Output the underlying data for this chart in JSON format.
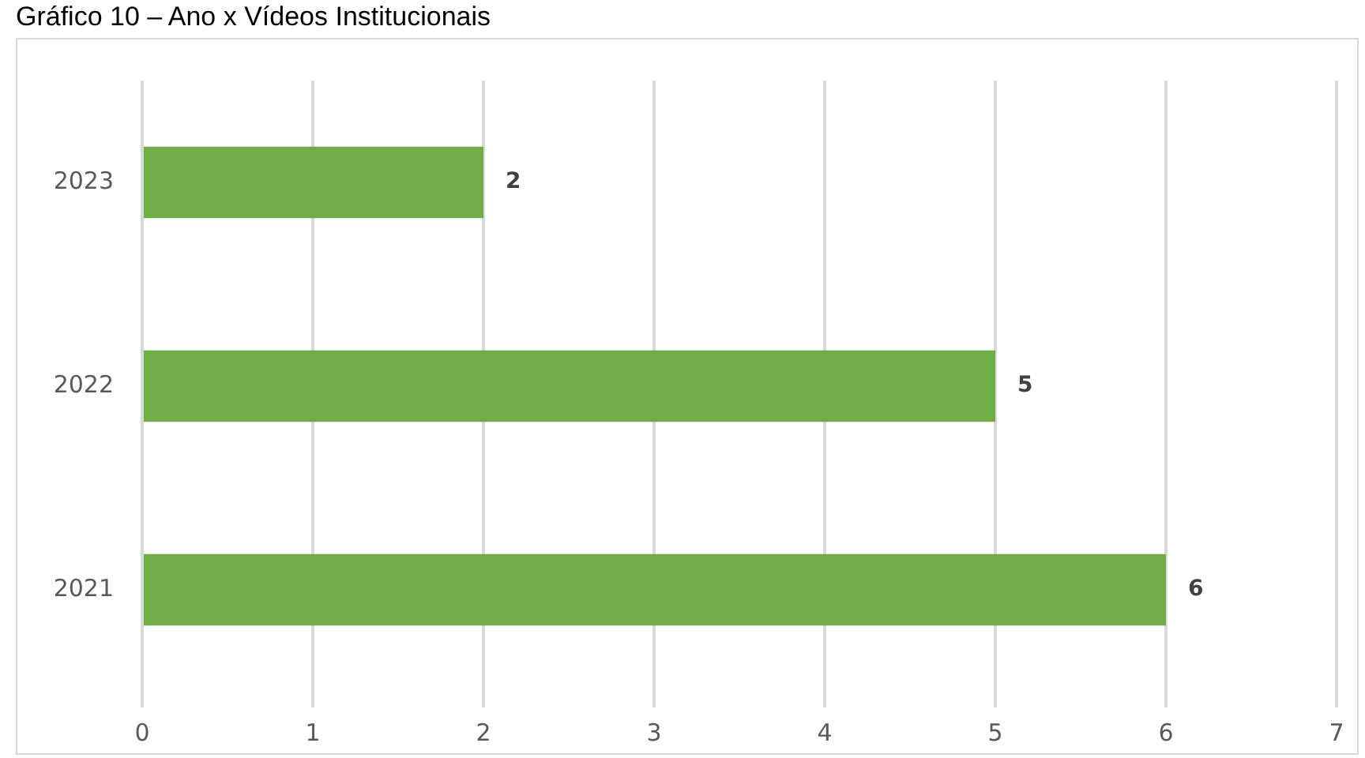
{
  "chart_data": {
    "type": "bar",
    "orientation": "horizontal",
    "title": "Gráfico 10 – Ano x Vídeos Institucionais",
    "categories": [
      "2023",
      "2022",
      "2021"
    ],
    "values": [
      2,
      5,
      6
    ],
    "color": "#70ad47",
    "xlim": [
      0,
      7
    ],
    "xticks": [
      0,
      1,
      2,
      3,
      4,
      5,
      6,
      7
    ],
    "grid": "x",
    "data_labels": true
  }
}
